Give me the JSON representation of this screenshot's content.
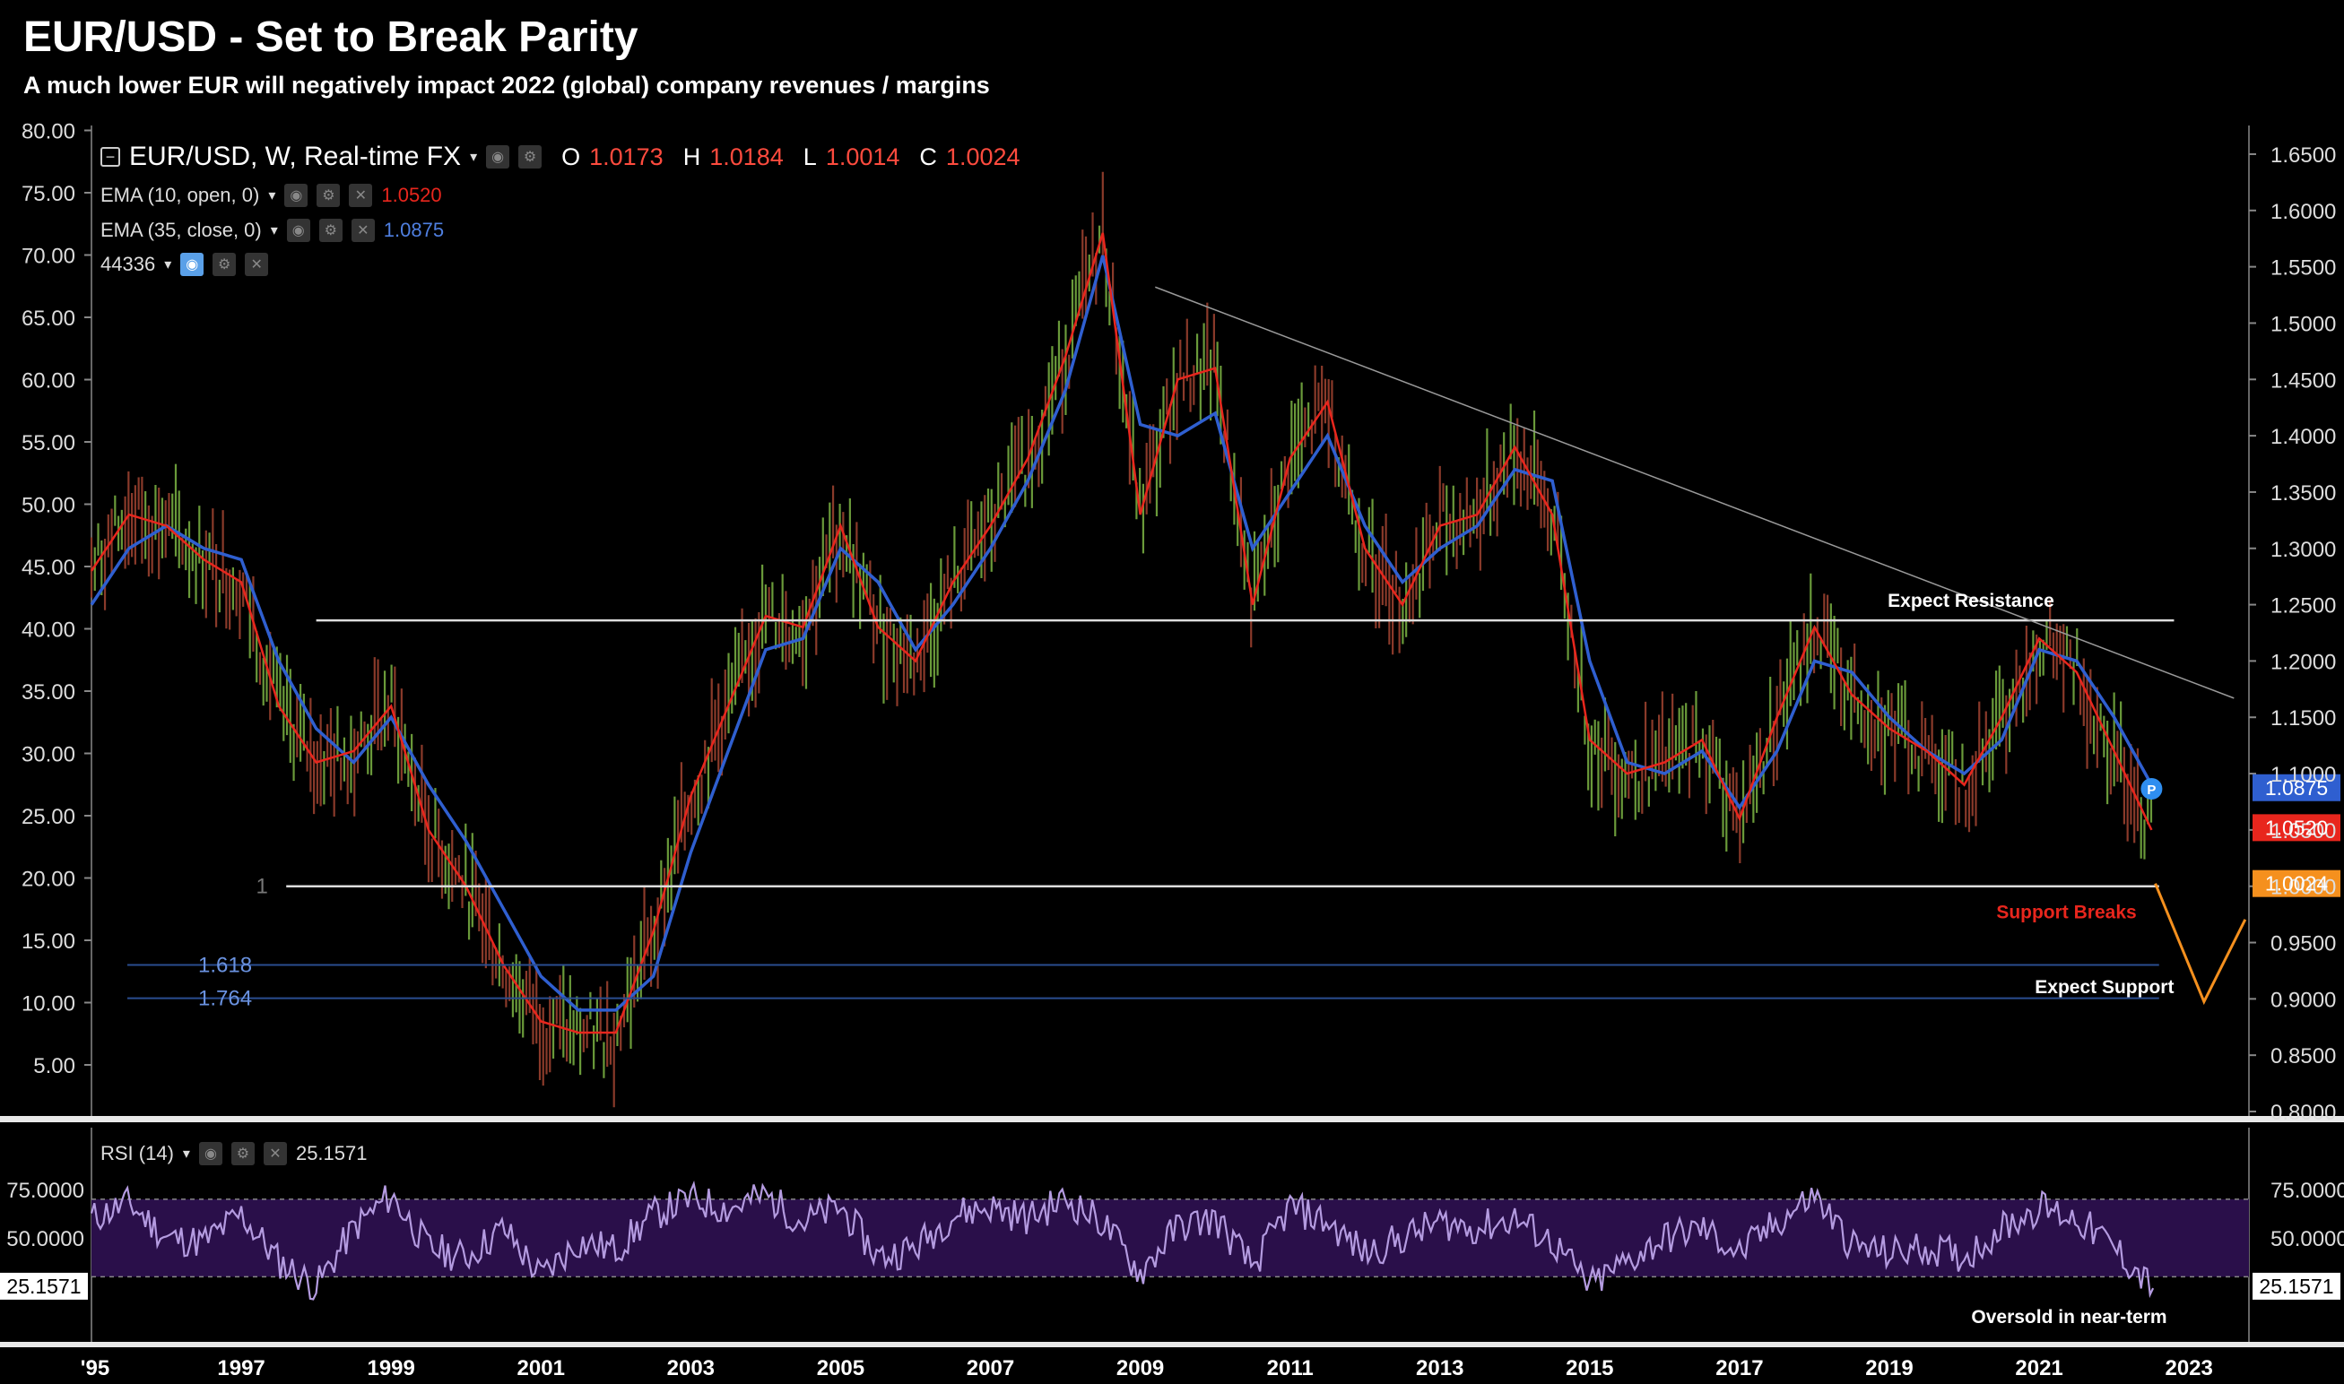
{
  "header": {
    "title": "EUR/USD - Set to Break Parity",
    "subtitle": "A much lower EUR will negatively impact 2022 (global) company revenues / margins"
  },
  "legend": {
    "symbol": "EUR/USD, W, Real-time FX",
    "open_label": "O",
    "open": "1.0173",
    "high_label": "H",
    "high": "1.0184",
    "low_label": "L",
    "low": "1.0014",
    "close_label": "C",
    "close": "1.0024",
    "ema_fast_label": "EMA (10, open, 0)",
    "ema_fast_value": "1.0520",
    "ema_slow_label": "EMA (35, close, 0)",
    "ema_slow_value": "1.0875",
    "overlay_label": "44336",
    "rsi_label": "RSI (14)",
    "rsi_value": "25.1571"
  },
  "badges": {
    "ema_slow": "1.0875",
    "ema_fast": "1.0520",
    "last": "1.0024",
    "rsi": "25.1571",
    "rsi_left": "25.1571",
    "p_marker": "P"
  },
  "annotations": {
    "resistance": "Expect Resistance",
    "support_breaks": "Support Breaks",
    "expect_support": "Expect Support",
    "oversold": "Oversold in near-term",
    "fib_1": "1",
    "fib_1618": "1.618",
    "fib_1764": "1.764"
  },
  "colors": {
    "ema_fast": "#e8261d",
    "ema_slow": "#2f5fd0",
    "candles": "#6a9a3a",
    "resistance_line": "#dddddd",
    "fib_lines": "#2a4d8f",
    "projection": "#f5901e",
    "rsi_line": "#b49be0",
    "rsi_band": "#2a0f4a",
    "badge_slow": "#2f5fd0",
    "badge_fast": "#e8261d",
    "badge_last": "#f5901e"
  },
  "chart_data": [
    {
      "type": "line",
      "title": "EUR/USD, W, Real-time FX",
      "x_ticks": [
        "'95",
        "1997",
        "1999",
        "2001",
        "2003",
        "2005",
        "2007",
        "2009",
        "2011",
        "2013",
        "2015",
        "2017",
        "2019",
        "2021",
        "2023"
      ],
      "y_left_ticks": [
        "80.00",
        "75.00",
        "70.00",
        "65.00",
        "60.00",
        "55.00",
        "50.00",
        "45.00",
        "40.00",
        "35.00",
        "30.00",
        "25.00",
        "20.00",
        "15.00",
        "10.00",
        "5.00"
      ],
      "y_right_ticks": [
        "1.6500",
        "1.6000",
        "1.5500",
        "1.5000",
        "1.4500",
        "1.4000",
        "1.3500",
        "1.3000",
        "1.2500",
        "1.2000",
        "1.1500",
        "1.1000",
        "1.0500",
        "1.0000",
        "0.9500",
        "0.9000",
        "0.8500",
        "0.8000"
      ],
      "ylim_right": [
        0.8,
        1.65
      ],
      "ylim_left": [
        0,
        80
      ],
      "xlim": [
        1995.0,
        2023.8
      ],
      "series": [
        {
          "name": "EMA (35, close, 0)",
          "x": [
            1995.0,
            1995.5,
            1996.0,
            1996.5,
            1997.0,
            1997.5,
            1998.0,
            1998.5,
            1999.0,
            1999.5,
            2000.0,
            2000.5,
            2001.0,
            2001.5,
            2002.0,
            2002.5,
            2003.0,
            2003.5,
            2004.0,
            2004.5,
            2005.0,
            2005.5,
            2006.0,
            2006.5,
            2007.0,
            2007.5,
            2008.0,
            2008.5,
            2009.0,
            2009.5,
            2010.0,
            2010.5,
            2011.0,
            2011.5,
            2012.0,
            2012.5,
            2013.0,
            2013.5,
            2014.0,
            2014.5,
            2015.0,
            2015.5,
            2016.0,
            2016.5,
            2017.0,
            2017.5,
            2018.0,
            2018.5,
            2019.0,
            2019.5,
            2020.0,
            2020.5,
            2021.0,
            2021.5,
            2022.0,
            2022.5
          ],
          "values": [
            1.25,
            1.3,
            1.32,
            1.3,
            1.29,
            1.2,
            1.14,
            1.11,
            1.15,
            1.09,
            1.04,
            0.98,
            0.92,
            0.89,
            0.89,
            0.92,
            1.03,
            1.12,
            1.21,
            1.22,
            1.3,
            1.27,
            1.21,
            1.25,
            1.3,
            1.36,
            1.44,
            1.56,
            1.41,
            1.4,
            1.42,
            1.3,
            1.35,
            1.4,
            1.32,
            1.27,
            1.3,
            1.32,
            1.37,
            1.36,
            1.2,
            1.11,
            1.1,
            1.12,
            1.07,
            1.12,
            1.2,
            1.19,
            1.15,
            1.12,
            1.1,
            1.13,
            1.21,
            1.2,
            1.15,
            1.09
          ]
        },
        {
          "name": "EMA (10, open, 0)",
          "x": [
            1995.0,
            1995.5,
            1996.0,
            1996.5,
            1997.0,
            1997.5,
            1998.0,
            1998.5,
            1999.0,
            1999.5,
            2000.0,
            2000.5,
            2001.0,
            2001.5,
            2002.0,
            2002.5,
            2003.0,
            2003.5,
            2004.0,
            2004.5,
            2005.0,
            2005.5,
            2006.0,
            2006.5,
            2007.0,
            2007.5,
            2008.0,
            2008.5,
            2009.0,
            2009.5,
            2010.0,
            2010.5,
            2011.0,
            2011.5,
            2012.0,
            2012.5,
            2013.0,
            2013.5,
            2014.0,
            2014.5,
            2015.0,
            2015.5,
            2016.0,
            2016.5,
            2017.0,
            2017.5,
            2018.0,
            2018.5,
            2019.0,
            2019.5,
            2020.0,
            2020.5,
            2021.0,
            2021.5,
            2022.0,
            2022.5
          ],
          "values": [
            1.28,
            1.33,
            1.32,
            1.29,
            1.27,
            1.16,
            1.11,
            1.12,
            1.16,
            1.05,
            1.0,
            0.93,
            0.88,
            0.87,
            0.87,
            0.96,
            1.08,
            1.16,
            1.24,
            1.23,
            1.32,
            1.23,
            1.2,
            1.27,
            1.32,
            1.38,
            1.47,
            1.58,
            1.33,
            1.45,
            1.46,
            1.25,
            1.38,
            1.43,
            1.3,
            1.25,
            1.32,
            1.33,
            1.39,
            1.33,
            1.13,
            1.1,
            1.11,
            1.13,
            1.06,
            1.15,
            1.23,
            1.17,
            1.14,
            1.12,
            1.09,
            1.15,
            1.22,
            1.19,
            1.12,
            1.05
          ]
        },
        {
          "name": "RSI (14)",
          "x": [
            1995.0,
            1995.5,
            1996.0,
            1996.5,
            1997.0,
            1997.5,
            1998.0,
            1998.5,
            1999.0,
            1999.5,
            2000.0,
            2000.5,
            2001.0,
            2001.5,
            2002.0,
            2002.5,
            2003.0,
            2003.5,
            2004.0,
            2004.5,
            2005.0,
            2005.5,
            2006.0,
            2006.5,
            2007.0,
            2007.5,
            2008.0,
            2008.5,
            2009.0,
            2009.5,
            2010.0,
            2010.5,
            2011.0,
            2011.5,
            2012.0,
            2012.5,
            2013.0,
            2013.5,
            2014.0,
            2014.5,
            2015.0,
            2015.5,
            2016.0,
            2016.5,
            2017.0,
            2017.5,
            2018.0,
            2018.5,
            2019.0,
            2019.5,
            2020.0,
            2020.5,
            2021.0,
            2021.5,
            2022.0,
            2022.5
          ],
          "values": [
            60,
            68,
            50,
            48,
            62,
            38,
            25,
            55,
            72,
            45,
            40,
            55,
            30,
            48,
            44,
            62,
            70,
            65,
            72,
            58,
            66,
            40,
            45,
            62,
            66,
            60,
            70,
            58,
            32,
            56,
            60,
            35,
            66,
            58,
            42,
            50,
            58,
            55,
            60,
            48,
            25,
            38,
            50,
            55,
            42,
            58,
            72,
            46,
            42,
            45,
            40,
            55,
            66,
            60,
            45,
            25
          ]
        }
      ],
      "fib_levels": [
        {
          "label": "1",
          "value": 1.0
        },
        {
          "label": "1.618",
          "value": 0.9301
        },
        {
          "label": "1.764",
          "value": 0.9006
        }
      ],
      "reference_lines": [
        {
          "label": "Expect Resistance",
          "value": 1.236
        }
      ],
      "projection": {
        "x": [
          2022.55,
          2023.2,
          2023.75
        ],
        "values": [
          1.0024,
          0.8975,
          0.9705
        ]
      },
      "rsi_band": [
        30,
        70
      ],
      "grid": false
    }
  ]
}
